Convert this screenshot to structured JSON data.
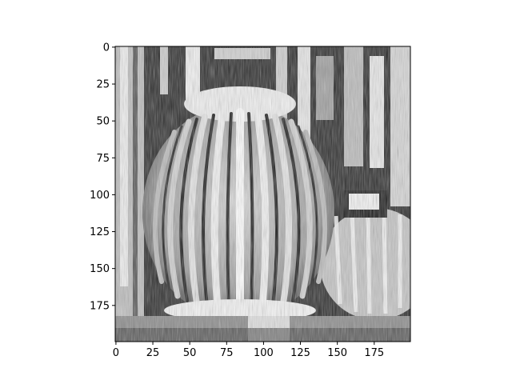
{
  "chart_data": {
    "type": "heatmap",
    "title": "",
    "xlabel": "",
    "ylabel": "",
    "colormap": "grayscale",
    "image_shape": [
      200,
      200
    ],
    "xlim": [
      -0.5,
      199.5
    ],
    "ylim": [
      199.5,
      -0.5
    ],
    "y_origin": "top",
    "grid": false,
    "colorbar": false,
    "x_ticks": [
      0,
      25,
      50,
      75,
      100,
      125,
      150,
      175
    ],
    "x_tick_labels": [
      "0",
      "25",
      "50",
      "75",
      "100",
      "125",
      "150",
      "175"
    ],
    "y_ticks": [
      0,
      25,
      50,
      75,
      100,
      125,
      150,
      175
    ],
    "y_tick_labels": [
      "0",
      "25",
      "50",
      "75",
      "100",
      "125",
      "150",
      "175"
    ]
  }
}
